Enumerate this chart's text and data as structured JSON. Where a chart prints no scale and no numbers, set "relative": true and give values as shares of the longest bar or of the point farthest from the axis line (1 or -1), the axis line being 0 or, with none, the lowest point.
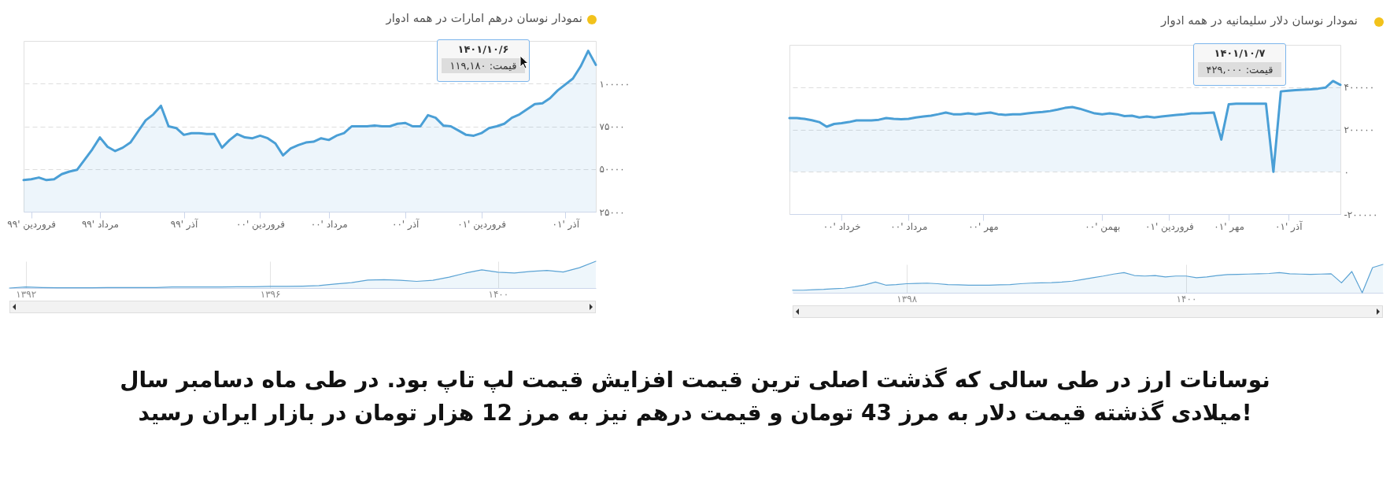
{
  "chart_data": [
    {
      "type": "area",
      "title": "نمودار نوسان درهم امارات در همه ادوار",
      "categories": [
        null,
        "فروردین '۹۹",
        null,
        null,
        null,
        null,
        null,
        null,
        null,
        null,
        "مرداد '۹۹",
        null,
        null,
        null,
        null,
        null,
        null,
        null,
        null,
        null,
        null,
        "آذر '۹۹",
        null,
        null,
        null,
        null,
        null,
        null,
        null,
        null,
        null,
        "فروردین '۰۰",
        null,
        null,
        null,
        null,
        null,
        null,
        null,
        null,
        "مرداد '۰۰",
        null,
        null,
        null,
        null,
        null,
        null,
        null,
        null,
        null,
        "آذر '۰۰",
        null,
        null,
        null,
        null,
        null,
        null,
        null,
        null,
        null,
        "فروردین '۰۱",
        null,
        null,
        null,
        null,
        null,
        null,
        null,
        null,
        null,
        null,
        "آذر '۰۱",
        null,
        null,
        null,
        null
      ],
      "series": [
        {
          "color": "#4a9fd6",
          "values": [
            43500,
            44000,
            45000,
            43500,
            44000,
            47000,
            48500,
            49500,
            55500,
            61500,
            68500,
            63000,
            60500,
            62500,
            65500,
            72000,
            78500,
            82000,
            87000,
            75000,
            74000,
            70000,
            71000,
            71000,
            70500,
            70500,
            62500,
            67000,
            70500,
            68500,
            68000,
            69500,
            68000,
            65000,
            58000,
            62000,
            64000,
            65500,
            66000,
            68000,
            67000,
            69500,
            71000,
            75000,
            75000,
            75000,
            75500,
            75000,
            75000,
            76500,
            77000,
            75000,
            75000,
            81500,
            80000,
            75500,
            75000,
            72500,
            70000,
            69500,
            71000,
            74000,
            75000,
            76500,
            80000,
            82000,
            85000,
            88000,
            88500,
            91500,
            96000,
            99500,
            103000,
            110000,
            119180,
            111000
          ]
        }
      ],
      "ylim": [
        25000,
        125000
      ],
      "yticks": [
        {
          "value": 25000,
          "label": "۲۵۰۰۰"
        },
        {
          "value": 50000,
          "label": "۵۰۰۰۰"
        },
        {
          "value": 75000,
          "label": "۷۵۰۰۰"
        },
        {
          "value": 100000,
          "label": "۱۰۰۰۰۰"
        }
      ],
      "grid": "y",
      "annotations": [
        "۱۴۰۱/۱۰/۶",
        "قیمت: ۱۱۹,۱۸۰"
      ]
    },
    {
      "type": "area",
      "relative": true,
      "grid": "x",
      "categories": [
        null,
        "۱۳۹۲",
        null,
        null,
        null,
        null,
        null,
        null,
        null,
        null,
        null,
        null,
        null,
        null,
        null,
        null,
        "۱۳۹۶",
        null,
        null,
        null,
        null,
        null,
        null,
        null,
        null,
        null,
        null,
        null,
        null,
        null,
        "۱۴۰۰",
        null,
        null,
        null,
        null,
        null,
        null
      ],
      "series": [
        {
          "color": "#5ba3d4",
          "values": [
            0,
            0.04,
            0.02,
            0.01,
            0.01,
            0.01,
            0.02,
            0.02,
            0.02,
            0.02,
            0.04,
            0.04,
            0.04,
            0.04,
            0.05,
            0.05,
            0.06,
            0.06,
            0.07,
            0.09,
            0.15,
            0.2,
            0.3,
            0.31,
            0.29,
            0.25,
            0.29,
            0.41,
            0.56,
            0.68,
            0.59,
            0.56,
            0.62,
            0.66,
            0.6,
            0.76,
            1
          ]
        }
      ]
    },
    {
      "type": "area",
      "title": "نمودار نوسان دلار سلیمانیه در همه ادوار",
      "categories": [
        null,
        null,
        null,
        null,
        null,
        null,
        null,
        "خرداد '۰۰",
        null,
        null,
        null,
        null,
        null,
        null,
        null,
        null,
        "مرداد '۰۰",
        null,
        null,
        null,
        null,
        null,
        null,
        null,
        null,
        null,
        "مهر '۰۰",
        null,
        null,
        null,
        null,
        null,
        null,
        null,
        null,
        null,
        null,
        null,
        null,
        null,
        null,
        null,
        "بهمن '۰۰",
        null,
        null,
        null,
        null,
        null,
        null,
        null,
        null,
        "فروردین '۰۱",
        null,
        null,
        null,
        null,
        null,
        null,
        null,
        "مهر '۰۱",
        null,
        null,
        null,
        null,
        null,
        null,
        null,
        "آذر '۰۱",
        null,
        null,
        null,
        null,
        null,
        null,
        null
      ],
      "series": [
        {
          "color": "#4a9fd6",
          "values": [
            254000,
            254000,
            250000,
            244000,
            235000,
            213000,
            226000,
            230000,
            235000,
            243000,
            243000,
            243000,
            246000,
            254000,
            250000,
            248000,
            250000,
            257000,
            261000,
            265000,
            272000,
            280000,
            272000,
            272000,
            276000,
            272000,
            276000,
            280000,
            272000,
            269000,
            272000,
            272000,
            276000,
            280000,
            283000,
            287000,
            294000,
            302000,
            306000,
            298000,
            287000,
            276000,
            272000,
            276000,
            272000,
            263000,
            265000,
            257000,
            261000,
            257000,
            261000,
            265000,
            269000,
            272000,
            276000,
            276000,
            278000,
            280000,
            152000,
            319000,
            322000,
            322000,
            322000,
            322000,
            322000,
            0,
            380000,
            383000,
            386000,
            388000,
            390000,
            393000,
            398000,
            429000,
            411000
          ]
        }
      ],
      "ylim": [
        -200000,
        600000
      ],
      "yticks": [
        {
          "value": -200000,
          "label": "-۲۰۰۰۰۰"
        },
        {
          "value": 0,
          "label": "۰"
        },
        {
          "value": 200000,
          "label": "۲۰۰۰۰۰"
        },
        {
          "value": 400000,
          "label": "۴۰۰۰۰۰"
        }
      ],
      "grid": "y",
      "annotations": [
        "۱۴۰۱/۱۰/۷",
        "قیمت: ۴۲۹,۰۰۰"
      ]
    },
    {
      "type": "area",
      "relative": true,
      "grid": "x",
      "categories": [
        null,
        null,
        null,
        null,
        null,
        null,
        null,
        null,
        null,
        null,
        null,
        "۱۳۹۸",
        null,
        null,
        null,
        null,
        null,
        null,
        null,
        null,
        null,
        null,
        null,
        null,
        null,
        null,
        null,
        null,
        null,
        null,
        null,
        null,
        null,
        null,
        null,
        null,
        null,
        null,
        "۱۴۰۰",
        null,
        null,
        null,
        null,
        null,
        null,
        null,
        null,
        null,
        null,
        null,
        null,
        null,
        null,
        null,
        null,
        null,
        null,
        null
      ],
      "series": [
        {
          "color": "#5ba3d4",
          "values": [
            0.09,
            0.09,
            0.11,
            0.12,
            0.14,
            0.16,
            0.21,
            0.28,
            0.38,
            0.27,
            0.29,
            0.32,
            0.33,
            0.34,
            0.32,
            0.29,
            0.28,
            0.27,
            0.27,
            0.27,
            0.28,
            0.29,
            0.32,
            0.34,
            0.35,
            0.36,
            0.38,
            0.41,
            0.47,
            0.53,
            0.59,
            0.66,
            0.71,
            0.61,
            0.59,
            0.61,
            0.56,
            0.59,
            0.59,
            0.53,
            0.56,
            0.61,
            0.64,
            0.65,
            0.66,
            0.67,
            0.68,
            0.71,
            0.67,
            0.66,
            0.65,
            0.66,
            0.67,
            0.35,
            0.75,
            0,
            0.89,
            1
          ]
        }
      ]
    },
    {
      "type": "other",
      "annotations": [
        "نوسانات ارز در طی سالی که گذشت اصلی ترین قیمت افزایش قیمت لپ تاپ بود. در طی ماه دسامبر سال",
        "میلادی گذشته قیمت دلار به مرز 43 تومان و قیمت درهم نیز به مرز 12 هزار تومان  در بازار ایران رسید!"
      ]
    }
  ]
}
